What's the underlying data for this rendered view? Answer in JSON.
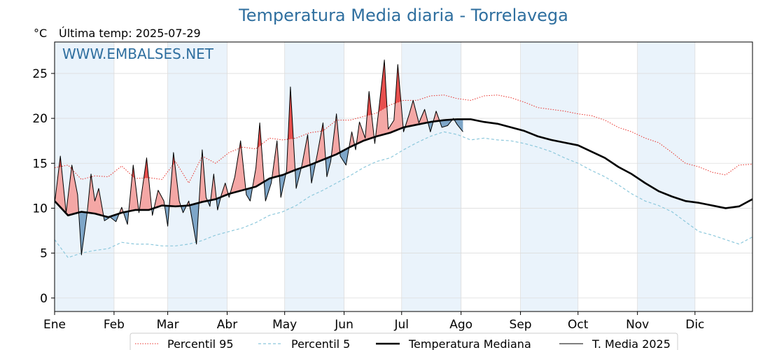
{
  "chart_data": {
    "type": "line",
    "title": "Temperatura Media diaria - Torrelavega",
    "unit_label": "°C",
    "subtitle": "Última temp: 2025-07-29",
    "watermark": "WWW.EMBALSES.NET",
    "ylim": [
      -1.5,
      28.5
    ],
    "y_ticks": [
      0,
      5,
      10,
      15,
      20,
      25
    ],
    "grid": true,
    "legend_position": "bottom",
    "month_labels": [
      "Ene",
      "Feb",
      "Mar",
      "Abr",
      "May",
      "Jun",
      "Jul",
      "Ago",
      "Sep",
      "Oct",
      "Nov",
      "Dic"
    ],
    "x_unit": "day_of_year",
    "colors": {
      "p95": "#e8302a",
      "p5": "#8cc8dc",
      "median": "#000000",
      "current": "#000000",
      "above_fill": "#f4a7a5",
      "above_fill_strong": "#e8504e",
      "below_fill": "#7ea6c8",
      "below_fill_strong": "#2e6aa0",
      "band": "#eaf3fb"
    },
    "series": [
      {
        "name": "Percentil 95",
        "style": "dotted",
        "x": [
          1,
          8,
          15,
          22,
          29,
          36,
          43,
          50,
          57,
          64,
          71,
          78,
          85,
          92,
          99,
          106,
          113,
          120,
          127,
          134,
          141,
          148,
          155,
          162,
          169,
          176,
          183,
          190,
          197,
          204,
          211,
          218,
          225,
          232,
          239,
          246,
          253,
          260,
          267,
          274,
          281,
          288,
          295,
          302,
          309,
          316,
          323,
          330,
          337,
          344,
          351,
          358,
          365
        ],
        "values": [
          14.5,
          14.8,
          13.2,
          13.6,
          13.5,
          14.7,
          13.3,
          13.4,
          13.2,
          15.2,
          12.8,
          15.8,
          15.0,
          16.2,
          16.8,
          16.6,
          17.8,
          17.6,
          17.8,
          18.4,
          18.6,
          19.8,
          19.8,
          20.2,
          20.6,
          21.5,
          22.0,
          22.0,
          22.5,
          22.6,
          22.2,
          22.0,
          22.5,
          22.6,
          22.3,
          21.8,
          21.2,
          21.0,
          20.8,
          20.5,
          20.3,
          19.8,
          19.0,
          18.5,
          17.8,
          17.3,
          16.2,
          15.0,
          14.6,
          14.0,
          13.7,
          14.8,
          14.9
        ]
      },
      {
        "name": "Percentil 5",
        "style": "dashed",
        "x": [
          1,
          8,
          15,
          22,
          29,
          36,
          43,
          50,
          57,
          64,
          71,
          78,
          85,
          92,
          99,
          106,
          113,
          120,
          127,
          134,
          141,
          148,
          155,
          162,
          169,
          176,
          183,
          190,
          197,
          204,
          211,
          218,
          225,
          232,
          239,
          246,
          253,
          260,
          267,
          274,
          281,
          288,
          295,
          302,
          309,
          316,
          323,
          330,
          337,
          344,
          351,
          358,
          365
        ],
        "values": [
          6.5,
          4.5,
          5.0,
          5.3,
          5.5,
          6.2,
          6.0,
          6.0,
          5.8,
          5.8,
          6.0,
          6.4,
          7.0,
          7.4,
          7.8,
          8.4,
          9.2,
          9.6,
          10.3,
          11.3,
          12.0,
          12.8,
          13.6,
          14.5,
          15.2,
          15.6,
          16.5,
          17.3,
          18.0,
          18.5,
          18.2,
          17.6,
          17.8,
          17.6,
          17.5,
          17.2,
          16.8,
          16.3,
          15.6,
          15.0,
          14.2,
          13.5,
          12.6,
          11.6,
          10.8,
          10.3,
          9.6,
          8.5,
          7.4,
          7.0,
          6.5,
          6.0,
          6.8
        ]
      },
      {
        "name": "Temperatura Mediana",
        "style": "thick",
        "x": [
          1,
          8,
          15,
          22,
          29,
          36,
          43,
          50,
          57,
          64,
          71,
          78,
          85,
          92,
          99,
          106,
          113,
          120,
          127,
          134,
          141,
          148,
          155,
          162,
          169,
          176,
          183,
          190,
          197,
          204,
          211,
          218,
          225,
          232,
          239,
          246,
          253,
          260,
          267,
          274,
          281,
          288,
          295,
          302,
          309,
          316,
          323,
          330,
          337,
          344,
          351,
          358,
          365
        ],
        "values": [
          10.8,
          9.2,
          9.6,
          9.4,
          9.0,
          9.5,
          9.8,
          9.8,
          10.3,
          10.2,
          10.3,
          10.7,
          11.0,
          11.6,
          12.0,
          12.4,
          13.3,
          13.7,
          14.3,
          14.8,
          15.4,
          16.0,
          16.8,
          17.5,
          18.0,
          18.4,
          19.0,
          19.3,
          19.6,
          19.8,
          19.9,
          19.9,
          19.6,
          19.4,
          19.0,
          18.6,
          18.0,
          17.6,
          17.3,
          17.0,
          16.3,
          15.6,
          14.6,
          13.8,
          12.8,
          11.9,
          11.3,
          10.8,
          10.6,
          10.3,
          10.0,
          10.2,
          11.0
        ]
      },
      {
        "name": "T. Media 2025",
        "style": "thin",
        "x": [
          1,
          4,
          7,
          10,
          13,
          15,
          18,
          20,
          22,
          24,
          27,
          30,
          33,
          36,
          39,
          42,
          45,
          49,
          52,
          55,
          58,
          60,
          63,
          66,
          68,
          71,
          75,
          78,
          80,
          82,
          84,
          86,
          88,
          90,
          92,
          95,
          98,
          101,
          103,
          106,
          108,
          111,
          114,
          117,
          119,
          122,
          124,
          127,
          130,
          133,
          135,
          138,
          141,
          143,
          145,
          148,
          150,
          153,
          156,
          158,
          160,
          163,
          165,
          168,
          170,
          173,
          175,
          178,
          180,
          183,
          186,
          188,
          191,
          194,
          197,
          200,
          203,
          206,
          209,
          211,
          214
        ],
        "values": [
          10.5,
          15.8,
          9.5,
          14.8,
          11.5,
          4.8,
          9.5,
          13.8,
          10.8,
          12.2,
          8.6,
          9.0,
          8.5,
          10.1,
          8.2,
          14.8,
          9.5,
          15.6,
          9.2,
          12.0,
          10.8,
          8.0,
          16.2,
          10.8,
          9.5,
          10.8,
          6.0,
          16.5,
          11.2,
          10.2,
          13.8,
          9.8,
          11.5,
          12.8,
          11.2,
          13.5,
          17.5,
          11.5,
          10.8,
          14.5,
          19.5,
          10.8,
          12.8,
          17.5,
          11.2,
          14.2,
          23.5,
          12.2,
          14.8,
          18.2,
          12.8,
          16.0,
          19.5,
          13.5,
          15.2,
          20.5,
          15.8,
          14.8,
          18.5,
          16.5,
          19.6,
          17.8,
          23.0,
          17.2,
          20.8,
          26.5,
          18.8,
          19.8,
          26.0,
          18.5,
          20.5,
          22.0,
          19.5,
          21.0,
          18.5,
          20.8,
          19.0,
          19.2,
          20.0,
          19.3,
          18.5
        ]
      }
    ]
  },
  "legend": {
    "items": [
      {
        "label": "Percentil 95"
      },
      {
        "label": "Percentil 5"
      },
      {
        "label": "Temperatura Mediana"
      },
      {
        "label": "T. Media 2025"
      }
    ]
  }
}
